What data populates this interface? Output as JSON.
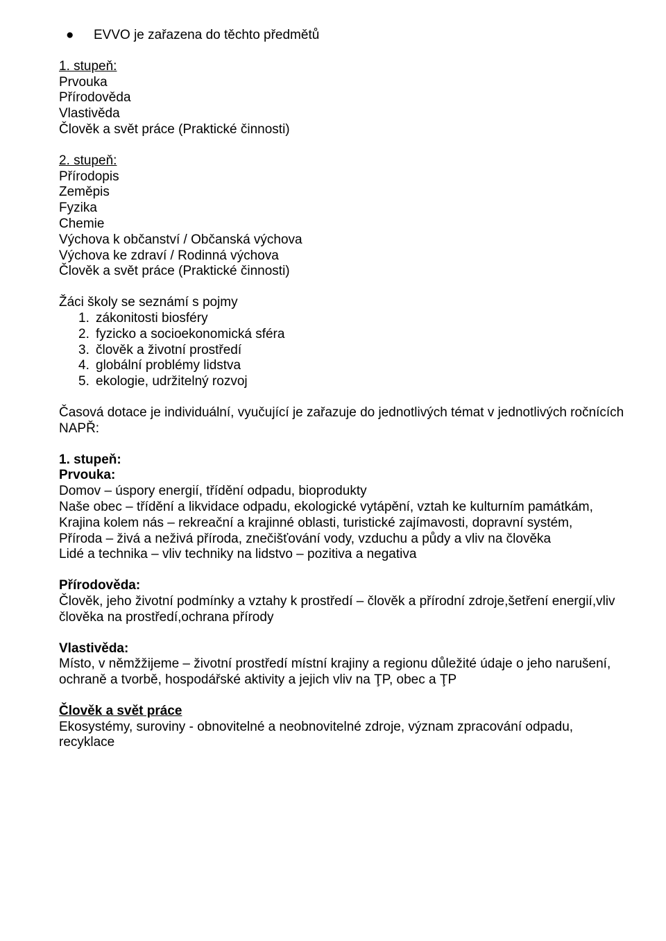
{
  "bullet": {
    "dot": "●",
    "text": "EVVO je zařazena do těchto předmětů"
  },
  "stage1_intro": {
    "heading": "1. stupeň:",
    "lines": [
      "Prvouka",
      "Přírodověda",
      "Vlastivěda",
      "Člověk a svět práce (Praktické činnosti)"
    ]
  },
  "stage2_intro": {
    "heading": "2. stupeň:",
    "lines": [
      "Přírodopis",
      "Zeměpis",
      "Fyzika",
      "Chemie",
      "Výchova k občanství / Občanská výchova",
      "Výchova ke zdraví / Rodinná výchova",
      "Člověk a svět práce (Praktické činnosti)"
    ]
  },
  "concepts": {
    "lead": "Žáci školy se seznámí s pojmy",
    "items": [
      "zákonitosti biosféry",
      "fyzicko a socioekonomická sféra",
      "člověk a životní prostředí",
      "globální problémy lidstva",
      "ekologie, udržitelný rozvoj"
    ]
  },
  "dotace": {
    "line1": "Časová dotace je individuální, vyučující je zařazuje do jednotlivých témat v jednotlivých ročnících",
    "line2": "NAPŘ:"
  },
  "stage1_detail": {
    "heading": "1. stupeň:",
    "prvouka": {
      "title": "Prvouka:",
      "lines": [
        "Domov – úspory energií, třídění odpadu, bioprodukty",
        "Naše obec – třídění a likvidace odpadu, ekologické vytápění, vztah ke kulturním památkám,",
        "Krajina kolem nás – rekreační a krajinné oblasti, turistické zajímavosti, dopravní systém,",
        "Příroda – živá a neživá příroda, znečišťování vody, vzduchu a půdy a vliv na člověka",
        "Lidé a technika – vliv techniky na lidstvo – pozitiva a negativa"
      ]
    },
    "prirodoveda": {
      "title": "Přírodověda:",
      "text": "Člověk, jeho životní podmínky a vztahy k prostředí – člověk a přírodní zdroje,šetření energií,vliv člověka na prostředí,ochrana přírody"
    },
    "vlastiveda": {
      "title": "Vlastivěda:",
      "text": "Místo, v němžžijeme – životní prostředí místní krajiny a regionu důležité údaje o jeho narušení, ochraně a tvorbě, hospodářské aktivity a jejich vliv na ŢP, obec a ŢP"
    },
    "clovek": {
      "title": "Člověk a svět práce",
      "text": "Ekosystémy, suroviny - obnovitelné a neobnovitelné zdroje, význam zpracování odpadu, recyklace"
    }
  }
}
